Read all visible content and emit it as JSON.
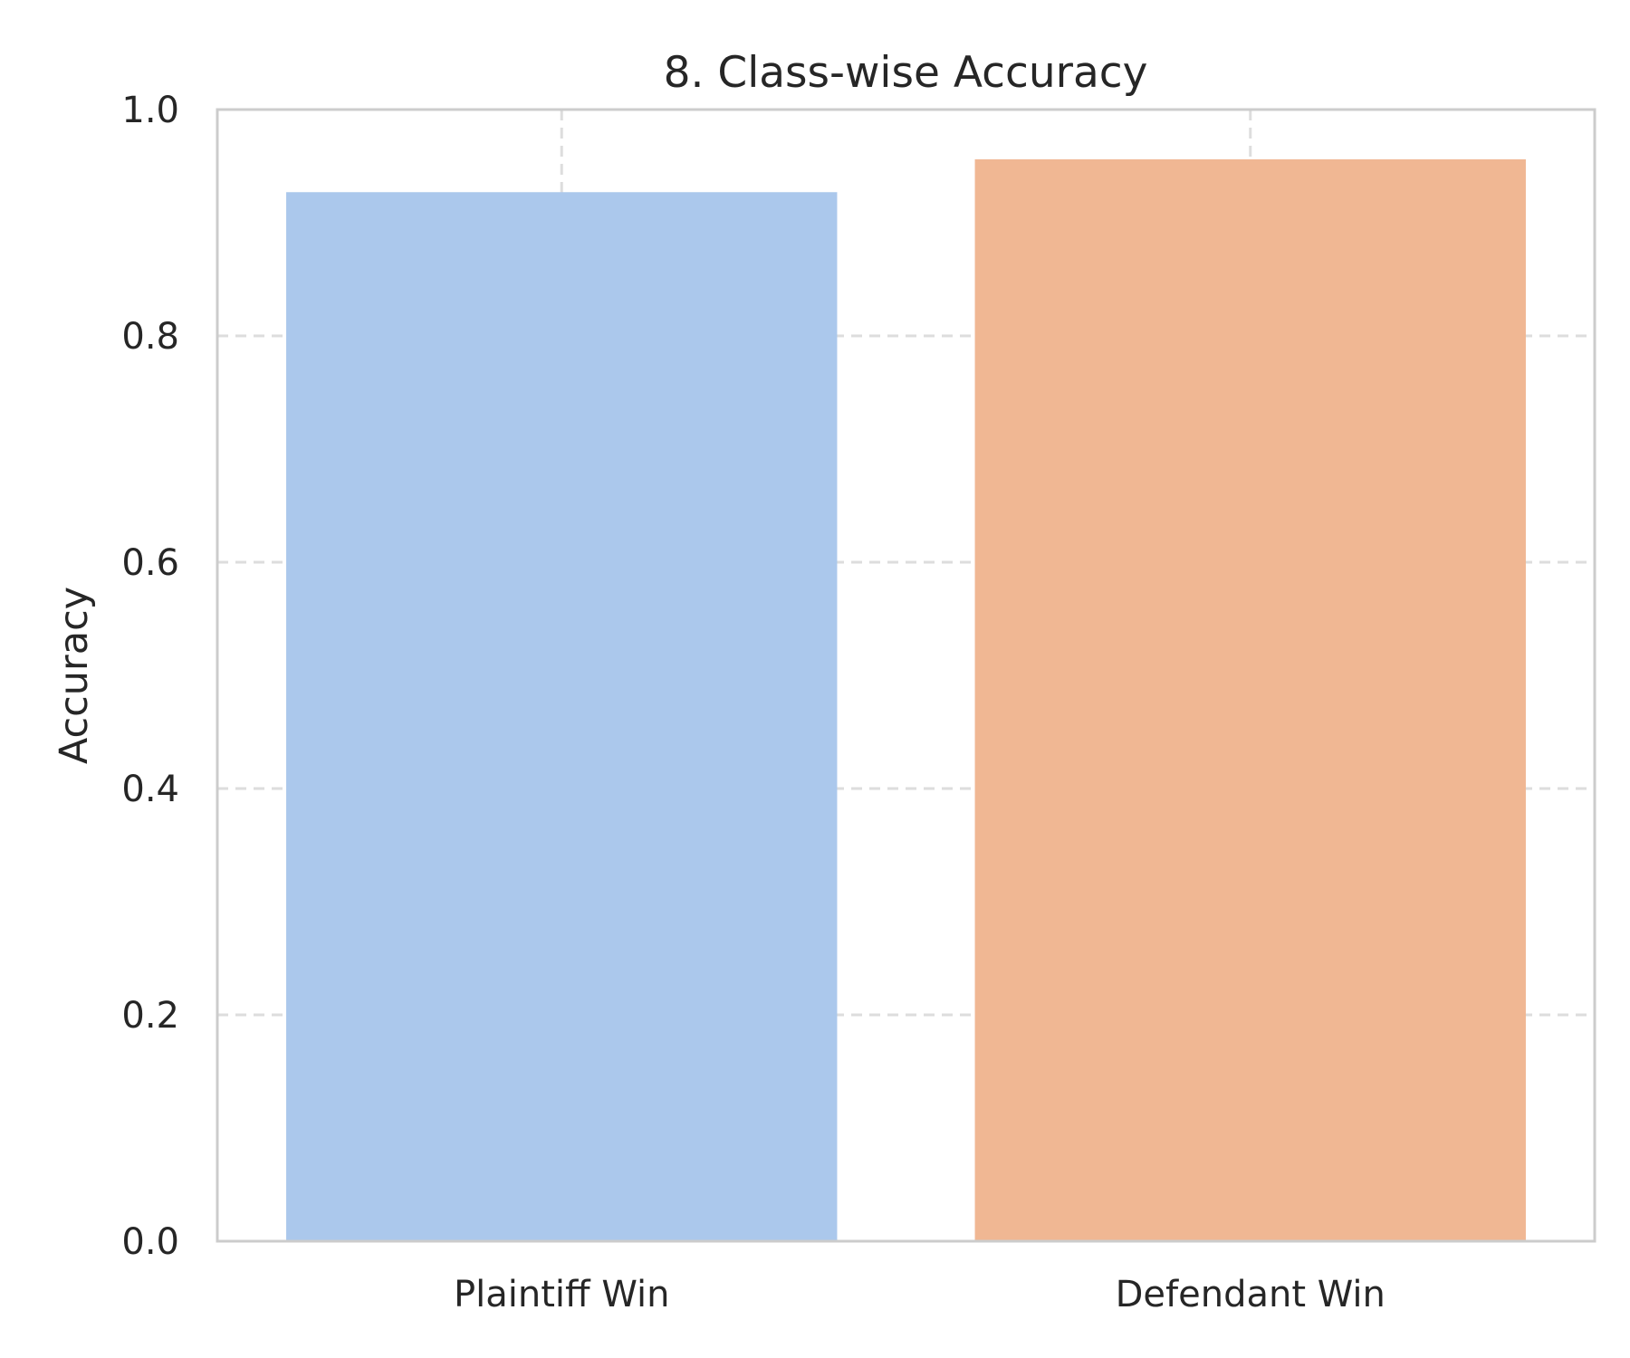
{
  "chart_data": {
    "type": "bar",
    "title": "8. Class-wise Accuracy",
    "xlabel": "",
    "ylabel": "Accuracy",
    "categories": [
      "Plaintiff Win",
      "Defendant Win"
    ],
    "values": [
      0.927,
      0.956
    ],
    "ylim": [
      0,
      1.0
    ],
    "yticks": [
      "0.0",
      "0.2",
      "0.4",
      "0.6",
      "0.8",
      "1.0"
    ],
    "bar_colors": [
      "#abc8ec",
      "#f0b793"
    ],
    "grid": true,
    "grid_style": "dashed",
    "legend": false
  }
}
